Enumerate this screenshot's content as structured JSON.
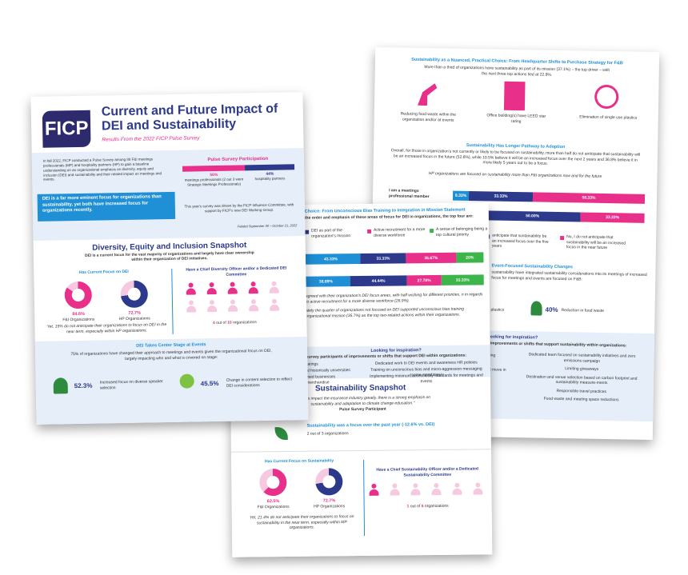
{
  "back_page": {
    "title": "Sustainability as a Nuanced, Practical Choice: From Headquarter Shifts to Purchase Strategy for F&B",
    "intro": "More than a third of organizations have sustainability as part of its mission (37.1%) – the top driver – with the next three top actions tied at 22.9%.",
    "actions": [
      "Reducing food waste within the organization and/or at events",
      "Office building(s) have LEED star rating",
      "Elimination of single use plastics"
    ],
    "pathway_title": "Sustainability Has Longer Pathway to Adoption",
    "pathway_text": "Overall, for those in organization's not currently or likely to be focused on sustainability, more than half do not anticipate that sustainability will be an increased focus in the future (52.6%), while 10.5% believe it will be an increased focus over the next 2 years and 36.8% believe it in more likely 5 years out to be a focus.",
    "pathway_note": "HP organizations are focused on sustainability more than F&I organizations now and for the future",
    "rows": [
      {
        "name": "I am a meetings professional member",
        "values": [
          8.33,
          33.33,
          58.33
        ],
        "value_labels": [
          "8.33%",
          "33.33%",
          "58.33%"
        ],
        "colors": [
          "#1f8fd6",
          "#2d3a8c",
          "#e8308a"
        ]
      },
      {
        "values": [
          50.0,
          33.33
        ],
        "value_labels": [
          "50.00%",
          "33.33%"
        ],
        "colors": [
          "#2d3a8c",
          "#e8308a"
        ]
      }
    ],
    "legend": [
      "anticipate that sustainability be an increased focus over the five years",
      "No, I do not anticipate that sustainability will be an increased focus in the near future"
    ],
    "event_title": "Event-Focused Sustainability Changes",
    "event_text": "sustainability have integrated sustainability considerations into its meetings of increased focus for meetings and events are focused on F&B:",
    "event_items": [
      "plastics",
      "40%",
      "Reduction in food waste"
    ],
    "insp_title": "eeking for inspiration?",
    "insp_sub": "improvements or shifts that support sustainability within organizations:",
    "insp_left": [
      "ing",
      "t move in"
    ],
    "insp_items": [
      "Dedicated team focused on sustainability initiatives and zero emissions campaign",
      "Limiting giveaways",
      "Destination and venue selection based on carbon footprint and sustainability measure-ments",
      "Responsible travel practices",
      "Food waste and meeting space reductions"
    ]
  },
  "middle_page": {
    "header": "Choice: From Unconscious Bias Training to Integration in Mission Statement",
    "header_text": "the order and emphasis of these areas of focus for DEI in organizations, the top four are:",
    "legend": [
      "DEI as part of the organization's mission",
      "Active recruitment for a more diverse workforce",
      "A sense of belonging being a top cultural priority"
    ],
    "rows": [
      {
        "values": [
          43.33,
          33.33,
          36.67,
          20
        ],
        "value_labels": [
          "43.33%",
          "33.33%",
          "36.67%",
          "20%"
        ]
      },
      {
        "values": [
          38.89,
          44.44,
          27.78,
          33.33
        ],
        "value_labels": [
          "38.89%",
          "44.44%",
          "27.78%",
          "33.33%"
        ]
      }
    ],
    "row_colors": [
      "#1f8fd6",
      "#2d3a8c",
      "#e8308a",
      "#3db54a"
    ],
    "text1": "agreed with their organization's DEI focus areas, with half wishing for different priorities, n in regards to active recruitment for a more diverse workforce (26.9%).",
    "text2": "ately the quarter of organizations not focused on DEI supported unconscious bias training organizational mission (35.7%) as the top two-related actions within their organizations.",
    "insp_title": "Looking for inspiration?",
    "insp_sub": "survey participants of improvements or shifts that support DEI within organizations:",
    "insp_left": [
      "ratings",
      "al historically universities",
      "med businesses merchandise"
    ],
    "insp_right": [
      "Dedicated work to DEI events and awareness HR policies",
      "Training on unconscious bias and micro-aggression messaging (some mandatory)",
      "Implementing minimum accessibility standards for meetings and events"
    ],
    "snapshot_title": "Sustainability Snapshot",
    "quote": "changes impact the insurance industry greatly, there is a strong emphasis on sustainability and adaptation to climate change education.\"",
    "quote_by": "Pulse Survey Participant",
    "focus_line": "Sustainability was a focus over the past year (-12.6% vs. DEI)",
    "focus_count": "2 out of 3 organizations",
    "focus_title": "Has Current Focus on Sustainability",
    "donuts": [
      {
        "value": 62.5,
        "label": "62.5%",
        "name": "F&I Organizations"
      },
      {
        "value": 72.7,
        "label": "72.7%",
        "name": "HP Organizations"
      }
    ],
    "note": "Yet, 21.4% do not anticipate their organizations to focus on sustainability in the near term, especially within MP organizations.",
    "officer_title": "Have a Chief Sustainability Officer and/or a Dedicated Sustainability Committee",
    "officer": {
      "filled": 1,
      "total": 6,
      "text": "out of",
      "unit": "organizations"
    }
  },
  "front_page": {
    "logo": "FICP",
    "title": "Current and Future Impact of DEI and Sustainability",
    "subtitle": "Results From the 2022 FICP Pulse Survey",
    "intro": "In fall 2022, FICP conducted a Pulse Survey among 88 F&I meetings professionals (MP) and hospitality partners (HP) to gain a baseline understanding on an organizational emphasis on diversity, equity and inclusion (DEI) and sustainability and their related impact on meetings and events.",
    "callout": "DEI is a far more eminent focus for organizations than sustainability, yet both have increased focus for organizations recently.",
    "participation": {
      "title": "Pulse Survey Participation",
      "values": [
        56,
        44
      ],
      "value_labels": [
        "56%",
        "44%"
      ],
      "names": [
        "meetings professionals (2 out 3 were Strategic Meetings Professionals)",
        "hospitality partners"
      ]
    },
    "driven_by": "This year's survey was driven by the FICP Influence Committee, with support by FICP's new DEI Working Group.",
    "fielded": "Fielded September 30 – October 21, 2022",
    "dei_title": "Diversity, Equity and Inclusion Snapshot",
    "dei_sub": "DEI is a current focus for the vast majority of organizations and largely have clear ownership within their organization of DEI initiatives.",
    "focus_title": "Has Current Focus on DEI",
    "donuts": [
      {
        "value": 84.6,
        "label": "84.6%",
        "name": "F&I Organizations"
      },
      {
        "value": 72.7,
        "label": "72.7%",
        "name": "HP Organizations"
      }
    ],
    "note": "Yet, 15% do not anticipate their organizations to focus on DEI in the near term, especially within HP organizations.",
    "officer_title": "Have a Chief Diversity Officer and/or a Dedicated DEI Committee",
    "officer": {
      "filled": 4,
      "total": 10,
      "text": "out of",
      "unit": "organizations"
    },
    "center_title": "DEI Takes Center Stage at Events",
    "center_text": "75% of organizations have changed their approach to meetings and events given the organizational focus on DEI, largely impacting who and what is covered on stage:",
    "stats": [
      {
        "label": "52.3%",
        "text": "Increased focus on diverse speaker selection"
      },
      {
        "label": "45.5%",
        "text": "Change in content selection to reflect DEI considerations"
      }
    ]
  }
}
